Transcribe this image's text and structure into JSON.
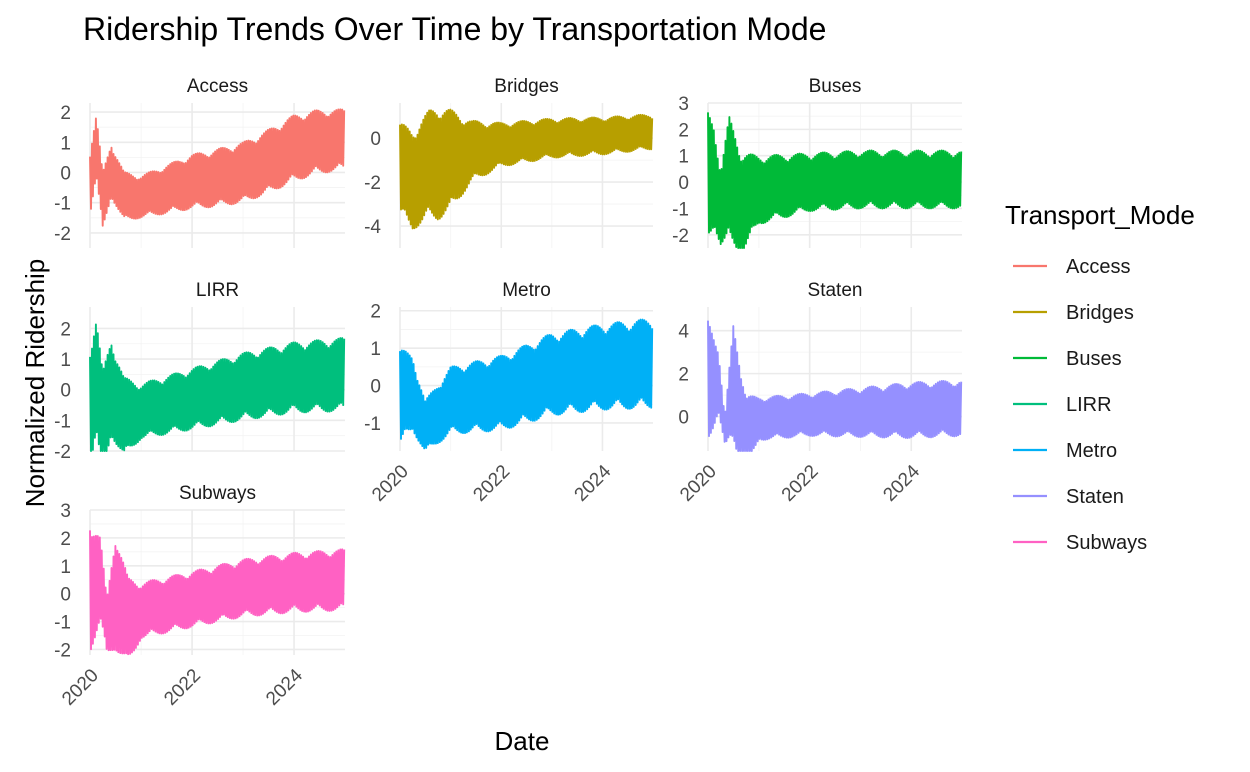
{
  "chart_data": {
    "type": "line",
    "title": "Ridership Trends Over Time by Transportation Mode",
    "xlabel": "Date",
    "ylabel": "Normalized Ridership",
    "legend": {
      "title": "Transport_Mode",
      "placement": "right"
    },
    "x_tick_labels": [
      "2020",
      "2022",
      "2024"
    ],
    "xlim": [
      "2020-01-01",
      "2024-12-31"
    ],
    "facet_layout": "3 columns, shared x axis, free y axes",
    "grid": true,
    "series": [
      {
        "name": "Access",
        "color": "#F8766D",
        "ylim": [
          -2.5,
          2.3
        ],
        "y_ticks": [
          2,
          1,
          0,
          -1,
          -2
        ],
        "y_tick_labels": [
          "2",
          "1",
          "0",
          "-1",
          "-2"
        ],
        "trend": [
          [
            "2020-01-01",
            -0.3
          ],
          [
            "2020-02-15",
            0.9
          ],
          [
            "2020-04-01",
            -1.0
          ],
          [
            "2020-06-01",
            0.1
          ],
          [
            "2020-09-01",
            -0.8
          ],
          [
            "2021-01-01",
            -0.8
          ],
          [
            "2021-06-01",
            -0.6
          ],
          [
            "2022-01-01",
            -0.3
          ],
          [
            "2022-06-01",
            -0.2
          ],
          [
            "2023-01-01",
            0.0
          ],
          [
            "2023-06-01",
            0.3
          ],
          [
            "2024-01-01",
            0.8
          ],
          [
            "2024-06-01",
            1.0
          ],
          [
            "2024-12-31",
            1.1
          ]
        ],
        "amplitude": [
          [
            "2020-01-01",
            1.1
          ],
          [
            "2020-06-01",
            0.9
          ],
          [
            "2021-01-01",
            0.7
          ],
          [
            "2022-01-01",
            0.9
          ],
          [
            "2023-01-01",
            1.0
          ],
          [
            "2024-01-01",
            1.1
          ],
          [
            "2024-12-31",
            1.0
          ]
        ]
      },
      {
        "name": "Bridges",
        "color": "#B79F00",
        "ylim": [
          -5.0,
          1.6
        ],
        "y_ticks": [
          0,
          -2,
          -4
        ],
        "y_tick_labels": [
          "0",
          "-2",
          "-4"
        ],
        "trend": [
          [
            "2020-01-01",
            -1.4
          ],
          [
            "2020-04-01",
            -1.9
          ],
          [
            "2020-08-01",
            -1.2
          ],
          [
            "2021-01-01",
            -1.0
          ],
          [
            "2021-06-01",
            -0.6
          ],
          [
            "2022-01-01",
            -0.3
          ],
          [
            "2023-01-01",
            0.0
          ],
          [
            "2024-01-01",
            0.1
          ],
          [
            "2024-12-31",
            0.3
          ]
        ],
        "amplitude": [
          [
            "2020-01-01",
            2.1
          ],
          [
            "2020-10-01",
            2.6
          ],
          [
            "2021-01-01",
            2.3
          ],
          [
            "2021-06-01",
            1.4
          ],
          [
            "2022-01-01",
            1.0
          ],
          [
            "2023-01-01",
            0.9
          ],
          [
            "2024-12-31",
            0.8
          ]
        ]
      },
      {
        "name": "Buses",
        "color": "#00BA38",
        "ylim": [
          -2.5,
          3.0
        ],
        "y_ticks": [
          3,
          2,
          1,
          0,
          -1,
          -2
        ],
        "y_tick_labels": [
          "3",
          "2",
          "1",
          "0",
          "-1",
          "-2"
        ],
        "trend": [
          [
            "2020-01-01",
            0.2
          ],
          [
            "2020-02-15",
            0.3
          ],
          [
            "2020-04-01",
            -1.0
          ],
          [
            "2020-06-01",
            0.1
          ],
          [
            "2020-09-01",
            -0.8
          ],
          [
            "2021-01-01",
            -0.3
          ],
          [
            "2022-01-01",
            0.0
          ],
          [
            "2023-01-01",
            0.1
          ],
          [
            "2024-01-01",
            0.1
          ],
          [
            "2024-12-31",
            0.1
          ]
        ],
        "amplitude": [
          [
            "2020-01-01",
            2.5
          ],
          [
            "2020-04-01",
            1.4
          ],
          [
            "2020-06-01",
            2.4
          ],
          [
            "2021-01-01",
            1.3
          ],
          [
            "2022-01-01",
            1.1
          ],
          [
            "2024-12-31",
            1.1
          ]
        ]
      },
      {
        "name": "LIRR",
        "color": "#00BF7D",
        "ylim": [
          -2.0,
          2.7
        ],
        "y_ticks": [
          2,
          1,
          0,
          -1,
          -2
        ],
        "y_tick_labels": [
          "2",
          "1",
          "0",
          "-1",
          "-2"
        ],
        "trend": [
          [
            "2020-01-01",
            -0.5
          ],
          [
            "2020-02-15",
            0.5
          ],
          [
            "2020-04-01",
            -1.2
          ],
          [
            "2020-06-01",
            0.1
          ],
          [
            "2020-09-01",
            -0.9
          ],
          [
            "2021-01-01",
            -0.7
          ],
          [
            "2022-01-01",
            -0.3
          ],
          [
            "2023-01-01",
            0.1
          ],
          [
            "2024-01-01",
            0.4
          ],
          [
            "2024-12-31",
            0.5
          ]
        ],
        "amplitude": [
          [
            "2020-01-01",
            2.0
          ],
          [
            "2020-06-01",
            1.6
          ],
          [
            "2021-01-01",
            0.9
          ],
          [
            "2022-01-01",
            1.0
          ],
          [
            "2023-01-01",
            1.1
          ],
          [
            "2024-12-31",
            1.2
          ]
        ]
      },
      {
        "name": "Metro",
        "color": "#00B0F6",
        "ylim": [
          -1.75,
          2.1
        ],
        "y_ticks": [
          2,
          1,
          0,
          -1
        ],
        "y_tick_labels": [
          "2",
          "1",
          "0",
          "-1"
        ],
        "trend": [
          [
            "2020-01-01",
            -0.3
          ],
          [
            "2020-04-01",
            -0.2
          ],
          [
            "2020-07-01",
            -1.1
          ],
          [
            "2021-01-01",
            -0.4
          ],
          [
            "2022-01-01",
            -0.2
          ],
          [
            "2022-06-01",
            0.0
          ],
          [
            "2023-01-01",
            0.3
          ],
          [
            "2024-01-01",
            0.5
          ],
          [
            "2024-12-31",
            0.6
          ]
        ],
        "amplitude": [
          [
            "2020-01-01",
            1.3
          ],
          [
            "2020-07-01",
            0.7
          ],
          [
            "2021-01-01",
            0.9
          ],
          [
            "2022-01-01",
            1.0
          ],
          [
            "2023-01-01",
            1.1
          ],
          [
            "2024-12-31",
            1.2
          ]
        ]
      },
      {
        "name": "Staten",
        "color": "#9590FF",
        "ylim": [
          -1.6,
          5.1
        ],
        "y_ticks": [
          4,
          2,
          0
        ],
        "y_tick_labels": [
          "4",
          "2",
          "0"
        ],
        "trend": [
          [
            "2020-01-01",
            1.5
          ],
          [
            "2020-03-15",
            1.8
          ],
          [
            "2020-05-01",
            -0.7
          ],
          [
            "2020-07-01",
            1.5
          ],
          [
            "2020-10-01",
            -0.9
          ],
          [
            "2021-01-01",
            -0.1
          ],
          [
            "2022-01-01",
            0.1
          ],
          [
            "2023-01-01",
            0.2
          ],
          [
            "2024-01-01",
            0.3
          ],
          [
            "2024-12-31",
            0.4
          ]
        ],
        "amplitude": [
          [
            "2020-01-01",
            3.0
          ],
          [
            "2020-05-01",
            0.6
          ],
          [
            "2020-07-01",
            2.8
          ],
          [
            "2021-01-01",
            1.0
          ],
          [
            "2022-01-01",
            1.0
          ],
          [
            "2024-01-01",
            1.3
          ],
          [
            "2024-12-31",
            1.3
          ]
        ]
      },
      {
        "name": "Subways",
        "color": "#FF61C3",
        "ylim": [
          -2.2,
          3.0
        ],
        "y_ticks": [
          3,
          2,
          1,
          0,
          -1,
          -2
        ],
        "y_tick_labels": [
          "3",
          "2",
          "1",
          "0",
          "-1",
          "-2"
        ],
        "trend": [
          [
            "2020-01-01",
            0.3
          ],
          [
            "2020-03-15",
            0.5
          ],
          [
            "2020-05-01",
            -1.2
          ],
          [
            "2020-07-01",
            0.1
          ],
          [
            "2020-10-01",
            -1.0
          ],
          [
            "2021-01-01",
            -0.6
          ],
          [
            "2022-01-01",
            -0.2
          ],
          [
            "2023-01-01",
            0.2
          ],
          [
            "2024-01-01",
            0.4
          ],
          [
            "2024-12-31",
            0.5
          ]
        ],
        "amplitude": [
          [
            "2020-01-01",
            2.4
          ],
          [
            "2020-05-01",
            1.0
          ],
          [
            "2020-07-01",
            2.1
          ],
          [
            "2021-01-01",
            1.0
          ],
          [
            "2022-01-01",
            1.0
          ],
          [
            "2024-12-31",
            1.1
          ]
        ]
      }
    ]
  }
}
